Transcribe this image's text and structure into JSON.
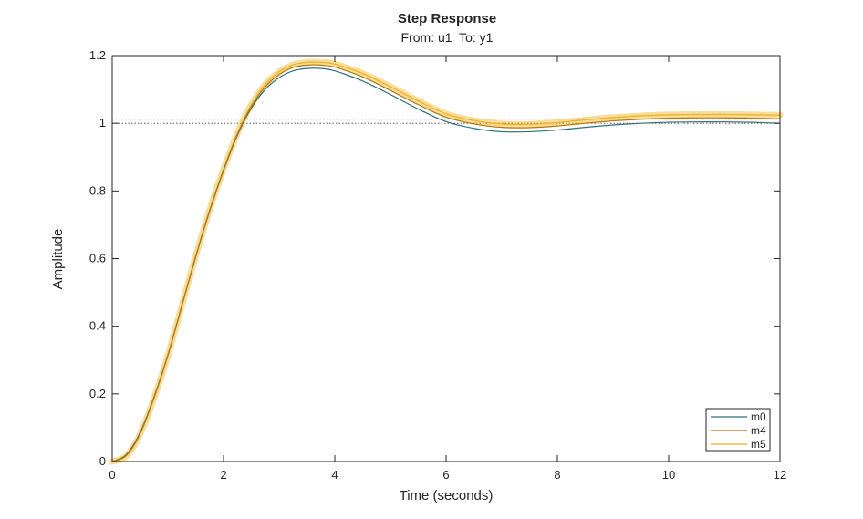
{
  "chart_data": {
    "type": "line",
    "title": "Step Response",
    "subtitle": "From: u1  To: y1",
    "xlabel": "Time (seconds)",
    "ylabel": "Amplitude",
    "xlim": [
      0,
      12
    ],
    "ylim": [
      0,
      1.2
    ],
    "xticks": [
      "0",
      "2",
      "4",
      "6",
      "8",
      "10",
      "12"
    ],
    "yticks": [
      "0",
      "0.2",
      "0.4",
      "0.6",
      "0.8",
      "1",
      "1.2"
    ],
    "grid": false,
    "legend_position": "bottom-right",
    "reference_lines": [
      1.0,
      1.012
    ],
    "x": [
      0,
      0.25,
      0.5,
      0.75,
      1.0,
      1.25,
      1.5,
      1.75,
      2.0,
      2.25,
      2.5,
      2.75,
      3.0,
      3.25,
      3.5,
      3.75,
      4.0,
      4.5,
      5.0,
      5.5,
      6.0,
      6.5,
      7.0,
      7.5,
      8.0,
      8.5,
      9.0,
      9.5,
      10.0,
      10.5,
      11.0,
      11.5,
      12.0
    ],
    "series": [
      {
        "name": "m0",
        "color": "#2f6f7a",
        "band": false,
        "values": [
          0,
          0.02,
          0.085,
          0.19,
          0.315,
          0.46,
          0.605,
          0.74,
          0.86,
          0.965,
          1.045,
          1.1,
          1.135,
          1.155,
          1.162,
          1.162,
          1.155,
          1.125,
          1.085,
          1.042,
          1.005,
          0.985,
          0.975,
          0.975,
          0.98,
          0.988,
          0.995,
          1.0,
          1.003,
          1.004,
          1.004,
          1.003,
          1.0
        ]
      },
      {
        "name": "m4",
        "color": "#b8760e",
        "band": false,
        "values": [
          0,
          0.018,
          0.082,
          0.188,
          0.314,
          0.46,
          0.606,
          0.742,
          0.862,
          0.968,
          1.05,
          1.108,
          1.144,
          1.165,
          1.172,
          1.172,
          1.166,
          1.137,
          1.097,
          1.055,
          1.018,
          0.998,
          0.988,
          0.987,
          0.992,
          1.0,
          1.007,
          1.012,
          1.015,
          1.016,
          1.016,
          1.015,
          1.013
        ]
      },
      {
        "name": "m5",
        "color": "#edb120",
        "band": true,
        "values": [
          0,
          0.016,
          0.08,
          0.186,
          0.313,
          0.46,
          0.607,
          0.744,
          0.864,
          0.971,
          1.055,
          1.115,
          1.152,
          1.173,
          1.18,
          1.18,
          1.175,
          1.147,
          1.108,
          1.066,
          1.028,
          1.008,
          0.998,
          0.997,
          1.002,
          1.01,
          1.017,
          1.022,
          1.025,
          1.026,
          1.026,
          1.025,
          1.024
        ]
      }
    ]
  }
}
